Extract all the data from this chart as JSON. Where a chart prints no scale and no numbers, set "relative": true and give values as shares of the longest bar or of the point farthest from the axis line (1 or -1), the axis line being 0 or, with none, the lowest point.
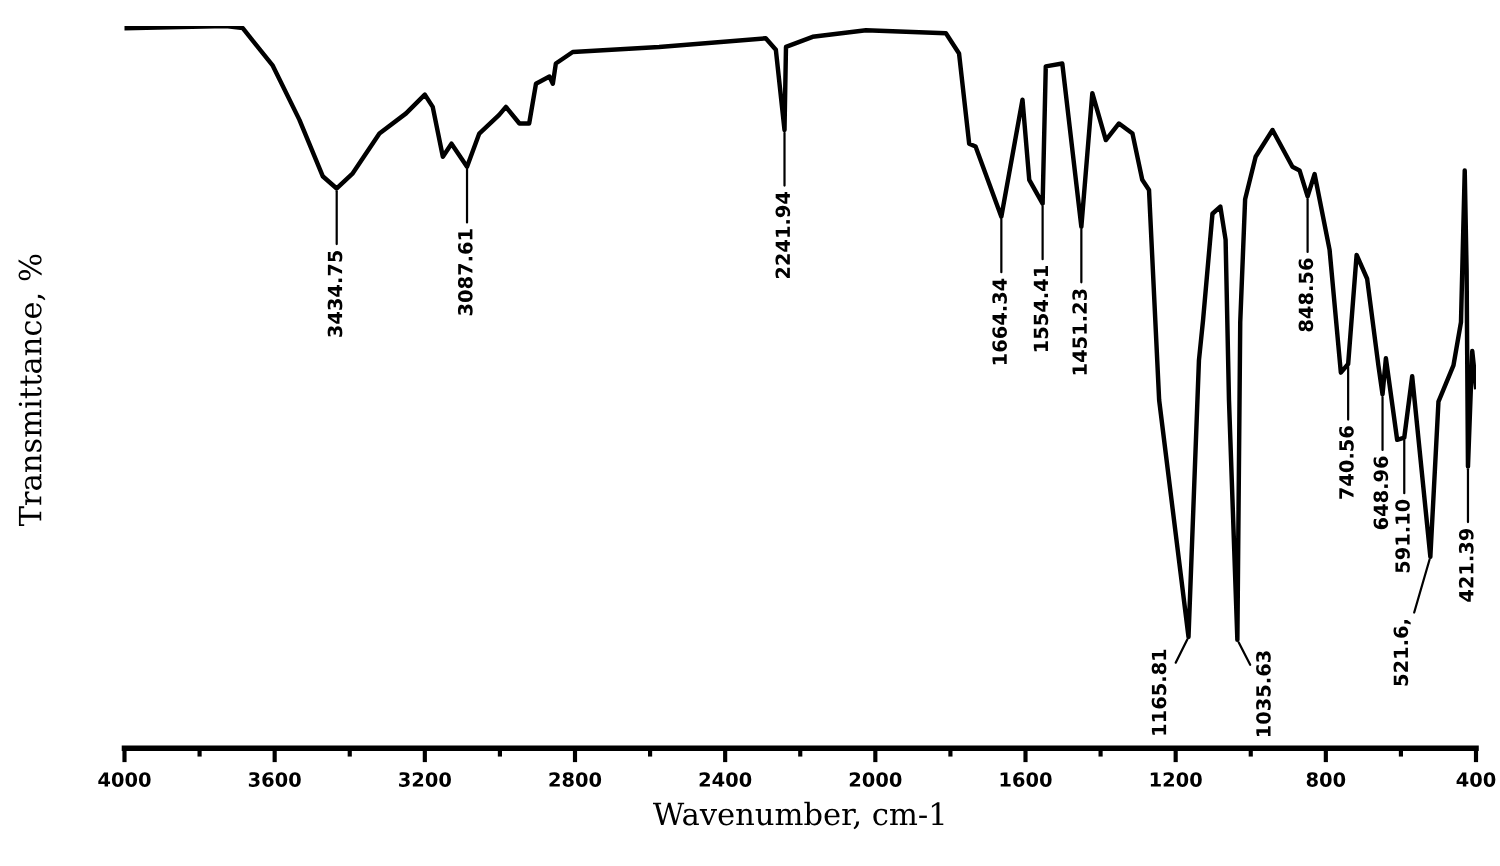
{
  "chart_data": {
    "type": "line",
    "relative": true,
    "xlabel": "Wavenumber, cm-1",
    "ylabel": "Transmittance, %",
    "xlim": [
      4000,
      400
    ],
    "xticks": [
      4000,
      3600,
      3200,
      2800,
      2400,
      2000,
      1600,
      1200,
      800,
      400
    ],
    "grid": false,
    "legend": false,
    "marker": "none",
    "line_style": "solid",
    "series": [
      {
        "color": "#000000",
        "x": [
          4000,
          3730,
          3685,
          3605,
          3534,
          3472,
          3434.75,
          3392,
          3321,
          3250,
          3200,
          3179,
          3152,
          3129,
          3087.61,
          3055,
          3002,
          2984,
          2948,
          2922,
          2904,
          2868,
          2859,
          2851,
          2806,
          2576,
          2292,
          2265,
          2241.94,
          2238,
          2167,
          2025,
          1812,
          1777,
          1750,
          1733,
          1664.34,
          1608,
          1590,
          1554.41,
          1546,
          1502,
          1451.23,
          1422,
          1386,
          1351,
          1315,
          1289,
          1271,
          1244,
          1165.81,
          1138,
          1127,
          1102,
          1081,
          1067,
          1058,
          1035.63,
          1028,
          1015,
          987,
          942,
          889,
          870,
          848.56,
          830,
          790,
          760,
          740.56,
          718,
          690,
          660,
          648.96,
          640,
          610,
          591.1,
          570,
          521.6,
          500,
          460,
          440,
          430,
          425,
          421.39,
          410,
          400
        ],
        "values": [
          0.997,
          1.0,
          0.997,
          0.945,
          0.87,
          0.792,
          0.775,
          0.796,
          0.851,
          0.879,
          0.905,
          0.888,
          0.819,
          0.837,
          0.805,
          0.851,
          0.877,
          0.888,
          0.865,
          0.865,
          0.92,
          0.93,
          0.92,
          0.948,
          0.964,
          0.971,
          0.983,
          0.967,
          0.856,
          0.971,
          0.985,
          0.994,
          0.99,
          0.962,
          0.837,
          0.833,
          0.736,
          0.898,
          0.787,
          0.754,
          0.944,
          0.948,
          0.722,
          0.907,
          0.842,
          0.865,
          0.851,
          0.787,
          0.773,
          0.482,
          0.154,
          0.537,
          0.593,
          0.74,
          0.75,
          0.704,
          0.482,
          0.15,
          0.59,
          0.76,
          0.819,
          0.856,
          0.805,
          0.8,
          0.764,
          0.795,
          0.69,
          0.52,
          0.532,
          0.683,
          0.65,
          0.53,
          0.49,
          0.54,
          0.427,
          0.43,
          0.515,
          0.265,
          0.48,
          0.53,
          0.59,
          0.8,
          0.66,
          0.39,
          0.55,
          0.5
        ]
      }
    ],
    "annotations": [
      {
        "text": "3434.75",
        "x": 3434.75,
        "y": 0.775
      },
      {
        "text": "3087.61",
        "x": 3087.61,
        "y": 0.805
      },
      {
        "text": "2241.94",
        "x": 2241.94,
        "y": 0.856
      },
      {
        "text": "1664.34",
        "x": 1664.34,
        "y": 0.736
      },
      {
        "text": "1554.41",
        "x": 1554.41,
        "y": 0.754
      },
      {
        "text": "1451.23",
        "x": 1451.23,
        "y": 0.722
      },
      {
        "text": "1165.81",
        "x": 1165.81,
        "y": 0.154
      },
      {
        "text": "1035.63",
        "x": 1035.63,
        "y": 0.15
      },
      {
        "text": "848.56",
        "x": 848.56,
        "y": 0.764
      },
      {
        "text": "740.56",
        "x": 740.56,
        "y": 0.532
      },
      {
        "text": "648.96",
        "x": 648.96,
        "y": 0.49
      },
      {
        "text": "591.10",
        "x": 591.1,
        "y": 0.43
      },
      {
        "text": "521.6,",
        "x": 521.6,
        "y": 0.265
      },
      {
        "text": "421.39",
        "x": 421.39,
        "y": 0.39
      }
    ]
  }
}
